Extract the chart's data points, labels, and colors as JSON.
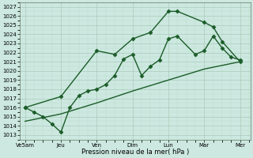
{
  "xlabel": "Pression niveau de la mer( hPa )",
  "bg_color": "#cce8e0",
  "grid_color_major": "#aaccbb",
  "grid_color_minor": "#bbddcc",
  "line_color": "#1a5c28",
  "ylim": [
    1012.5,
    1027.5
  ],
  "yticks": [
    1013,
    1014,
    1015,
    1016,
    1017,
    1018,
    1019,
    1020,
    1021,
    1022,
    1023,
    1024,
    1025,
    1026,
    1027
  ],
  "xtick_labels": [
    "Ve5am",
    "Jeu",
    "Ven",
    "Dim",
    "Lun",
    "Mar",
    "Mer"
  ],
  "xtick_pos": [
    0,
    1,
    2,
    3,
    4,
    5,
    6
  ],
  "xlim": [
    -0.15,
    6.3
  ],
  "line1_x": [
    0,
    1,
    2,
    3,
    4,
    5,
    6
  ],
  "line1_y": [
    1014.5,
    1015.3,
    1016.5,
    1017.8,
    1019.0,
    1020.2,
    1021.0
  ],
  "line2_x": [
    0,
    0.25,
    0.5,
    0.75,
    1.0,
    1.25,
    1.5,
    1.75,
    2.0,
    2.25,
    2.5,
    2.75,
    3.0,
    3.25,
    3.5,
    3.75,
    4.0,
    4.25,
    4.75,
    5.0,
    5.25,
    5.5,
    5.75,
    6.0
  ],
  "line2_y": [
    1016.0,
    1015.5,
    1015.0,
    1014.2,
    1013.3,
    1016.0,
    1017.3,
    1017.8,
    1018.0,
    1018.5,
    1019.5,
    1021.3,
    1021.8,
    1019.5,
    1020.5,
    1021.2,
    1023.5,
    1023.8,
    1021.8,
    1022.2,
    1023.8,
    1022.5,
    1021.5,
    1021.2
  ],
  "line3_x": [
    0,
    1,
    2,
    2.5,
    3,
    3.5,
    4.0,
    4.25,
    5.0,
    5.25,
    5.5,
    6.0
  ],
  "line3_y": [
    1016.0,
    1017.2,
    1022.2,
    1021.8,
    1023.5,
    1024.2,
    1026.5,
    1026.5,
    1025.3,
    1024.8,
    1023.2,
    1021.0
  ],
  "marker": "D",
  "marker_size": 2.5,
  "line_width": 1.0,
  "tick_fontsize": 5.0,
  "xlabel_fontsize": 6.0
}
